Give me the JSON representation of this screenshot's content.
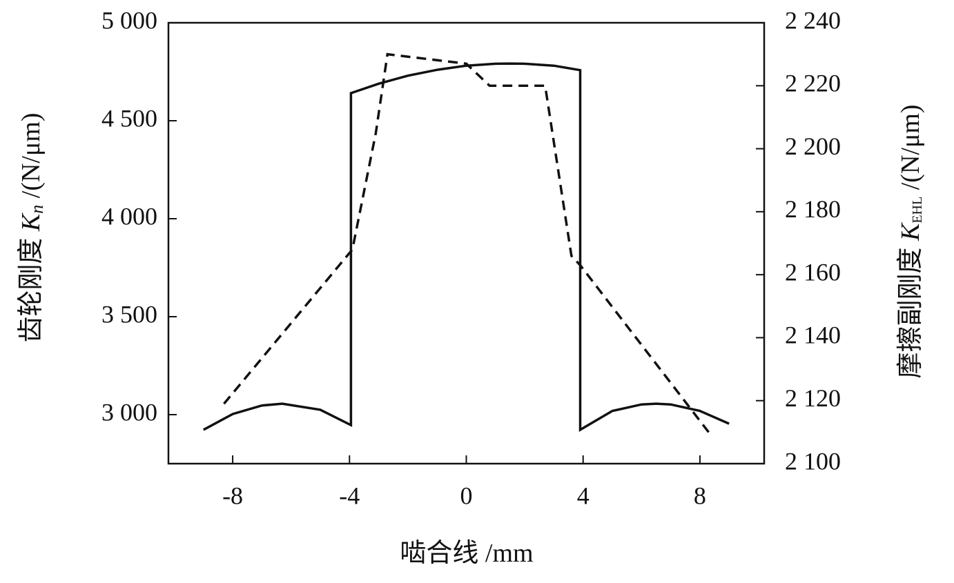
{
  "chart_data": {
    "type": "line",
    "xlabel": [
      "啮合线 /mm"
    ],
    "ylabel": [
      "齿轮刚度 ",
      "K",
      "n",
      " /(N/μm)"
    ],
    "y2label": [
      "摩擦副刚度 ",
      "K",
      "EHL",
      " /(N/μm)"
    ],
    "xlim": [
      -10.2,
      10.2
    ],
    "xticks": [
      -8,
      -4,
      0,
      4,
      8
    ],
    "ylim": [
      2750,
      5000
    ],
    "yticks": [
      {
        "value": 3000,
        "label": "3 000"
      },
      {
        "value": 3500,
        "label": "3 500"
      },
      {
        "value": 4000,
        "label": "4 000"
      },
      {
        "value": 4500,
        "label": "4 500"
      },
      {
        "value": 5000,
        "label": "5 000"
      }
    ],
    "y2lim": [
      2100,
      2240
    ],
    "y2ticks": [
      {
        "value": 2100,
        "label": "2 100"
      },
      {
        "value": 2120,
        "label": "2 120"
      },
      {
        "value": 2140,
        "label": "2 140"
      },
      {
        "value": 2160,
        "label": "2 160"
      },
      {
        "value": 2180,
        "label": "2 180"
      },
      {
        "value": 2200,
        "label": "2 200"
      },
      {
        "value": 2220,
        "label": "2 220"
      },
      {
        "value": 2240,
        "label": "2 240"
      }
    ],
    "series": [
      {
        "color": "#111111",
        "dash": "solid",
        "x": [
          -9,
          -8,
          -7,
          -6.3,
          -5,
          -3.95,
          -3.95,
          -3,
          -2,
          -1,
          0,
          1,
          1.5,
          2,
          3,
          3.9,
          3.9,
          5,
          6,
          6.5,
          7,
          8,
          9
        ],
        "values": [
          2923,
          3003,
          3047,
          3056,
          3025,
          2947,
          4641,
          4689,
          4730,
          4760,
          4781,
          4791,
          4792,
          4791,
          4781,
          4758,
          2923,
          3019,
          3052,
          3056,
          3052,
          3019,
          2954
        ]
      },
      {
        "color": "#111111",
        "dash": "dashed",
        "axis": "y2",
        "x": [
          -8.3,
          -3.9,
          -3.1,
          -2.7,
          0,
          0.8,
          2.7,
          3.6,
          3.9,
          8.3
        ],
        "values": [
          2119,
          2168,
          2205,
          2230,
          2227,
          2220,
          2220,
          2166,
          2163,
          2110
        ]
      }
    ]
  }
}
